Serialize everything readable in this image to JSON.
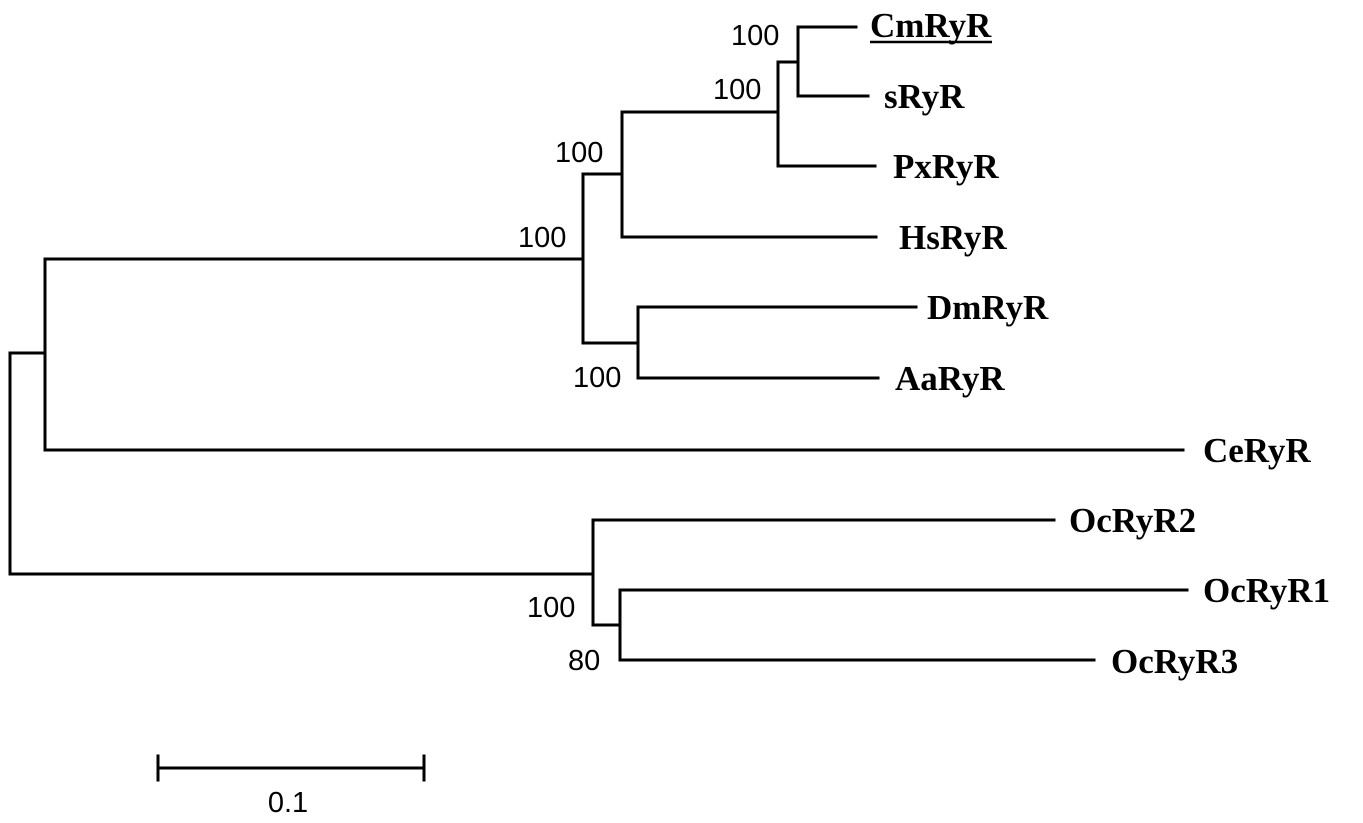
{
  "tree": {
    "taxa": [
      {
        "id": "cmryr",
        "label": "CmRyR",
        "underlined": true
      },
      {
        "id": "sryr",
        "label": "sRyR"
      },
      {
        "id": "pxryr",
        "label": "PxRyR"
      },
      {
        "id": "hsryr",
        "label": "HsRyR"
      },
      {
        "id": "dmryr",
        "label": "DmRyR"
      },
      {
        "id": "aaryr",
        "label": "AaRyR"
      },
      {
        "id": "ceryr",
        "label": "CeRyR"
      },
      {
        "id": "ocryr2",
        "label": "OcRyR2"
      },
      {
        "id": "ocryr1",
        "label": "OcRyR1"
      },
      {
        "id": "ocryr3",
        "label": "OcRyR3"
      }
    ],
    "bootstrap": [
      {
        "node": "cmryr-sryr",
        "value": "100"
      },
      {
        "node": "cmryr-sryr-pxryr",
        "value": "100"
      },
      {
        "node": "lepidoptera-hsryr",
        "value": "100"
      },
      {
        "node": "insects",
        "value": "100"
      },
      {
        "node": "diptera",
        "value": "100"
      },
      {
        "node": "ocryr-all",
        "value": "100"
      },
      {
        "node": "ocryr1-ocryr3",
        "value": "80"
      }
    ],
    "scale_bar": {
      "label": "0.1"
    },
    "line_color": "#000000"
  }
}
